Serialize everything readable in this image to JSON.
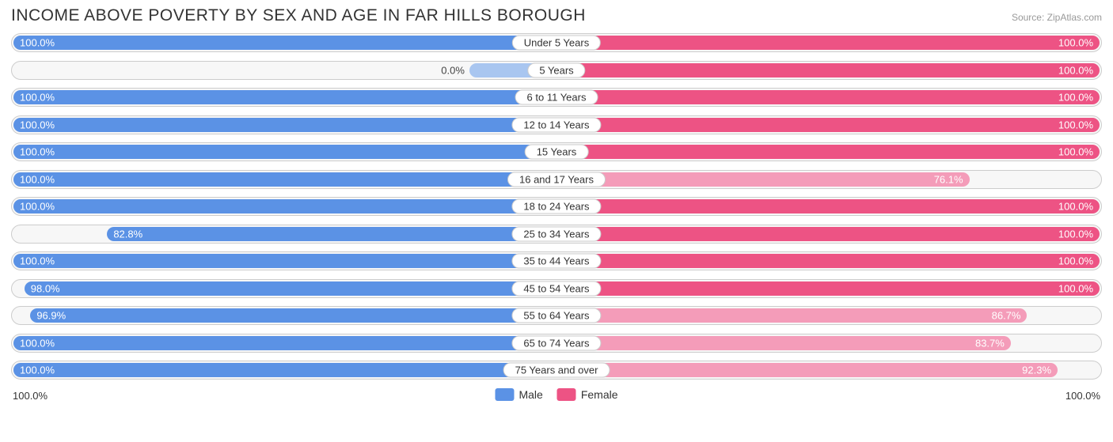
{
  "title": "INCOME ABOVE POVERTY BY SEX AND AGE IN FAR HILLS BOROUGH",
  "source": "Source: ZipAtlas.com",
  "colors": {
    "male": "#5b92e5",
    "male_light": "#a9c6f0",
    "female": "#ed5384",
    "female_light": "#f49cb9",
    "track_bg": "#f7f7f7",
    "track_border": "#cccccc",
    "text": "#333333"
  },
  "legend": {
    "male": "Male",
    "female": "Female"
  },
  "axis": {
    "left": "100.0%",
    "right": "100.0%"
  },
  "rows": [
    {
      "category": "Under 5 Years",
      "male": 100.0,
      "female": 100.0,
      "male_label": "100.0%",
      "female_label": "100.0%"
    },
    {
      "category": "5 Years",
      "male": 0.0,
      "female": 100.0,
      "male_label": "0.0%",
      "female_label": "100.0%",
      "male_small": true
    },
    {
      "category": "6 to 11 Years",
      "male": 100.0,
      "female": 100.0,
      "male_label": "100.0%",
      "female_label": "100.0%"
    },
    {
      "category": "12 to 14 Years",
      "male": 100.0,
      "female": 100.0,
      "male_label": "100.0%",
      "female_label": "100.0%"
    },
    {
      "category": "15 Years",
      "male": 100.0,
      "female": 100.0,
      "male_label": "100.0%",
      "female_label": "100.0%"
    },
    {
      "category": "16 and 17 Years",
      "male": 100.0,
      "female": 76.1,
      "male_label": "100.0%",
      "female_label": "76.1%",
      "female_light": true
    },
    {
      "category": "18 to 24 Years",
      "male": 100.0,
      "female": 100.0,
      "male_label": "100.0%",
      "female_label": "100.0%"
    },
    {
      "category": "25 to 34 Years",
      "male": 82.8,
      "female": 100.0,
      "male_label": "82.8%",
      "female_label": "100.0%"
    },
    {
      "category": "35 to 44 Years",
      "male": 100.0,
      "female": 100.0,
      "male_label": "100.0%",
      "female_label": "100.0%"
    },
    {
      "category": "45 to 54 Years",
      "male": 98.0,
      "female": 100.0,
      "male_label": "98.0%",
      "female_label": "100.0%"
    },
    {
      "category": "55 to 64 Years",
      "male": 96.9,
      "female": 86.7,
      "male_label": "96.9%",
      "female_label": "86.7%",
      "female_light": true
    },
    {
      "category": "65 to 74 Years",
      "male": 100.0,
      "female": 83.7,
      "male_label": "100.0%",
      "female_label": "83.7%",
      "female_light": true
    },
    {
      "category": "75 Years and over",
      "male": 100.0,
      "female": 92.3,
      "male_label": "100.0%",
      "female_label": "92.3%",
      "female_light": true
    }
  ]
}
